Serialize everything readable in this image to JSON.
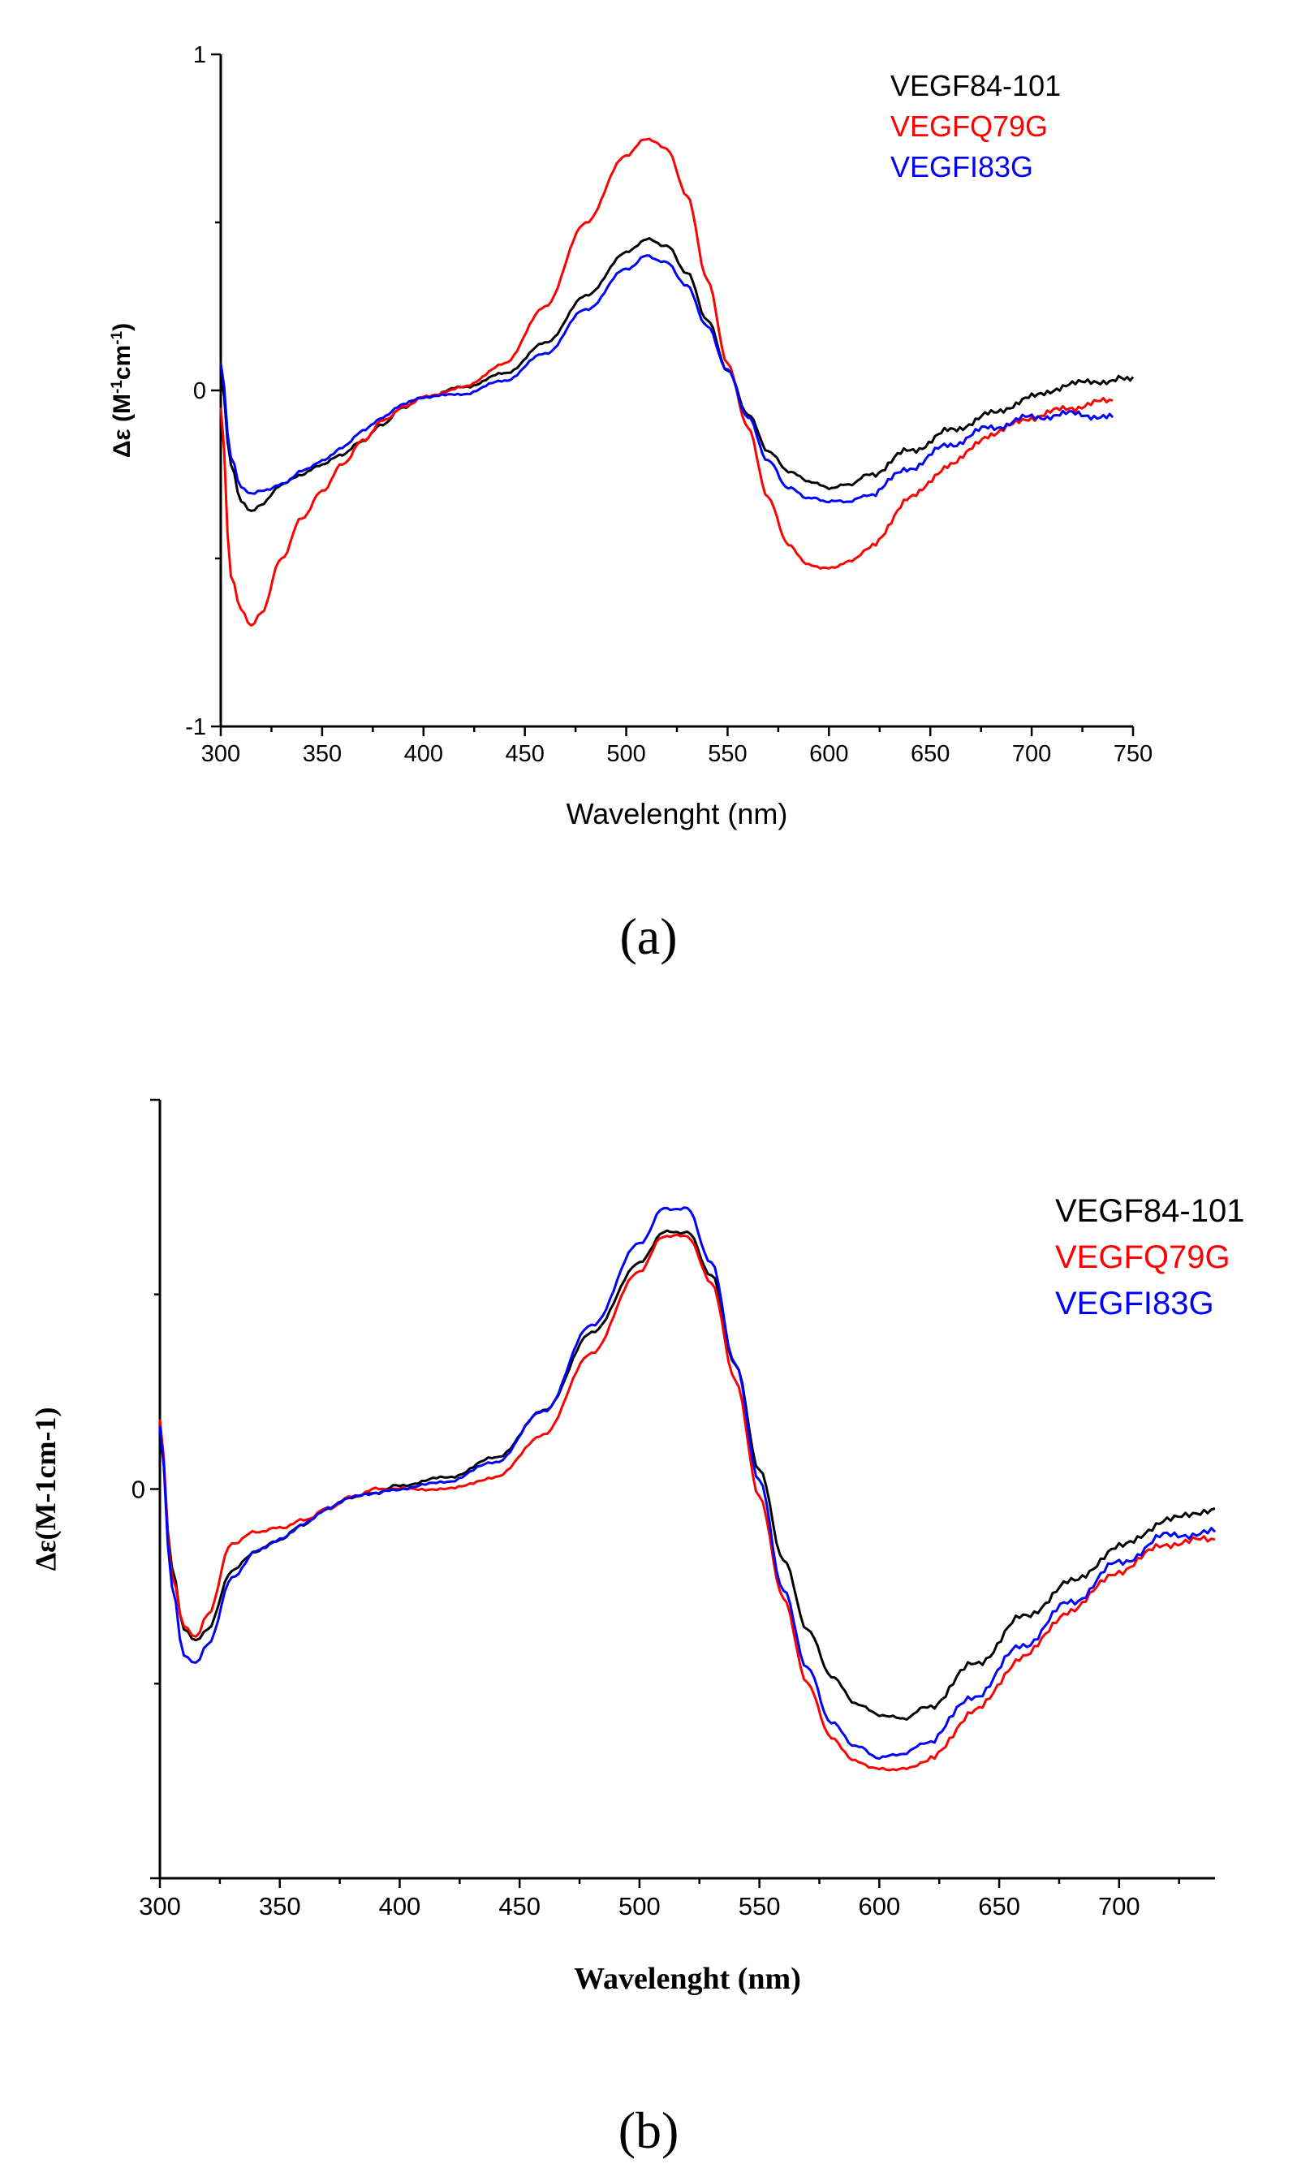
{
  "chart_data": [
    {
      "panel_label": "(a)",
      "type": "line",
      "xlabel": "Wavelenght (nm)",
      "ylabel_main": "Δε (M",
      "ylabel_sup1": "-1",
      "ylabel_mid": "cm",
      "ylabel_sup2": "-1",
      "ylabel_end": ")",
      "xlim": [
        300,
        750
      ],
      "ylim": [
        -1,
        1
      ],
      "xticks": [
        "300",
        "350",
        "400",
        "450",
        "500",
        "550",
        "600",
        "650",
        "700",
        "750"
      ],
      "yticks": [
        "1",
        "0",
        "-1"
      ],
      "legend_position": "top-right",
      "series": [
        {
          "name": "VEGF84-101",
          "color": "#000000",
          "x": [
            300,
            305,
            310,
            315,
            320,
            330,
            340,
            350,
            360,
            370,
            380,
            390,
            400,
            420,
            440,
            460,
            480,
            500,
            510,
            520,
            530,
            540,
            550,
            560,
            570,
            580,
            590,
            600,
            610,
            620,
            640,
            660,
            680,
            700,
            720,
            740,
            750
          ],
          "y": [
            0.05,
            -0.22,
            -0.33,
            -0.36,
            -0.34,
            -0.28,
            -0.25,
            -0.22,
            -0.19,
            -0.15,
            -0.1,
            -0.05,
            -0.02,
            0.01,
            0.05,
            0.14,
            0.28,
            0.41,
            0.45,
            0.43,
            0.35,
            0.21,
            0.06,
            -0.07,
            -0.18,
            -0.24,
            -0.27,
            -0.29,
            -0.28,
            -0.25,
            -0.18,
            -0.12,
            -0.07,
            -0.02,
            0.02,
            0.03,
            0.04
          ]
        },
        {
          "name": "VEGFQ79G",
          "color": "#ff0000",
          "x": [
            300,
            305,
            310,
            315,
            320,
            330,
            340,
            350,
            360,
            370,
            380,
            390,
            400,
            420,
            440,
            460,
            480,
            500,
            510,
            520,
            530,
            540,
            550,
            560,
            570,
            580,
            590,
            600,
            610,
            620,
            640,
            660,
            680,
            700,
            720,
            740
          ],
          "y": [
            -0.05,
            -0.55,
            -0.65,
            -0.7,
            -0.66,
            -0.5,
            -0.38,
            -0.3,
            -0.22,
            -0.15,
            -0.09,
            -0.05,
            -0.02,
            0.01,
            0.08,
            0.25,
            0.5,
            0.7,
            0.75,
            0.72,
            0.58,
            0.33,
            0.08,
            -0.11,
            -0.32,
            -0.46,
            -0.52,
            -0.53,
            -0.51,
            -0.47,
            -0.32,
            -0.22,
            -0.13,
            -0.08,
            -0.05,
            -0.03
          ]
        },
        {
          "name": "VEGFI83G",
          "color": "#0000ff",
          "x": [
            300,
            305,
            310,
            315,
            320,
            330,
            340,
            350,
            360,
            370,
            380,
            390,
            400,
            420,
            440,
            460,
            480,
            500,
            510,
            520,
            530,
            540,
            550,
            560,
            570,
            580,
            590,
            600,
            610,
            620,
            640,
            660,
            680,
            700,
            720,
            740
          ],
          "y": [
            0.08,
            -0.2,
            -0.29,
            -0.31,
            -0.3,
            -0.28,
            -0.24,
            -0.21,
            -0.17,
            -0.12,
            -0.08,
            -0.04,
            -0.02,
            -0.01,
            0.03,
            0.11,
            0.24,
            0.36,
            0.4,
            0.38,
            0.31,
            0.19,
            0.06,
            -0.08,
            -0.21,
            -0.29,
            -0.32,
            -0.33,
            -0.33,
            -0.31,
            -0.23,
            -0.16,
            -0.11,
            -0.08,
            -0.07,
            -0.08
          ]
        }
      ]
    },
    {
      "panel_label": "(b)",
      "type": "line",
      "xlabel": "Wavelenght (nm)",
      "ylabel": "Δε(M-1cm-1)",
      "xlim": [
        300,
        740
      ],
      "ylim": [
        -1,
        1
      ],
      "xticks": [
        "300",
        "350",
        "400",
        "450",
        "500",
        "550",
        "600",
        "650",
        "700"
      ],
      "yticks": [
        "0"
      ],
      "legend_position": "top-right",
      "series": [
        {
          "name": "VEGF84-101",
          "color": "#000000",
          "x": [
            300,
            305,
            310,
            315,
            320,
            330,
            340,
            350,
            360,
            370,
            380,
            390,
            400,
            420,
            440,
            460,
            480,
            500,
            510,
            520,
            530,
            540,
            550,
            560,
            570,
            580,
            590,
            600,
            610,
            620,
            640,
            660,
            680,
            700,
            720,
            740
          ],
          "y": [
            0.15,
            -0.2,
            -0.36,
            -0.39,
            -0.36,
            -0.21,
            -0.16,
            -0.13,
            -0.09,
            -0.05,
            -0.02,
            -0.01,
            0.01,
            0.03,
            0.08,
            0.2,
            0.4,
            0.58,
            0.66,
            0.66,
            0.55,
            0.32,
            0.05,
            -0.18,
            -0.36,
            -0.48,
            -0.55,
            -0.58,
            -0.59,
            -0.56,
            -0.45,
            -0.33,
            -0.24,
            -0.15,
            -0.08,
            -0.05
          ]
        },
        {
          "name": "VEGFQ79G",
          "color": "#ff0000",
          "x": [
            300,
            305,
            310,
            315,
            320,
            330,
            340,
            350,
            360,
            370,
            380,
            390,
            400,
            420,
            440,
            460,
            480,
            500,
            510,
            520,
            530,
            540,
            550,
            560,
            570,
            580,
            590,
            600,
            610,
            620,
            640,
            660,
            680,
            700,
            720,
            740
          ],
          "y": [
            0.18,
            -0.22,
            -0.35,
            -0.38,
            -0.32,
            -0.14,
            -0.11,
            -0.1,
            -0.08,
            -0.05,
            -0.02,
            0.0,
            0.0,
            0.0,
            0.03,
            0.14,
            0.35,
            0.56,
            0.65,
            0.65,
            0.53,
            0.28,
            -0.02,
            -0.28,
            -0.5,
            -0.64,
            -0.7,
            -0.72,
            -0.72,
            -0.7,
            -0.57,
            -0.43,
            -0.31,
            -0.21,
            -0.14,
            -0.13
          ]
        },
        {
          "name": "VEGFI83G",
          "color": "#0000ff",
          "x": [
            300,
            305,
            310,
            315,
            320,
            330,
            340,
            350,
            360,
            370,
            380,
            390,
            400,
            420,
            440,
            460,
            480,
            500,
            510,
            520,
            530,
            540,
            550,
            560,
            570,
            580,
            590,
            600,
            610,
            620,
            640,
            660,
            680,
            700,
            720,
            740
          ],
          "y": [
            0.16,
            -0.25,
            -0.43,
            -0.45,
            -0.4,
            -0.23,
            -0.16,
            -0.13,
            -0.09,
            -0.05,
            -0.02,
            -0.01,
            0.0,
            0.02,
            0.07,
            0.2,
            0.42,
            0.63,
            0.72,
            0.72,
            0.58,
            0.32,
            0.02,
            -0.26,
            -0.46,
            -0.6,
            -0.66,
            -0.69,
            -0.68,
            -0.65,
            -0.53,
            -0.4,
            -0.29,
            -0.19,
            -0.12,
            -0.11
          ]
        }
      ]
    }
  ]
}
